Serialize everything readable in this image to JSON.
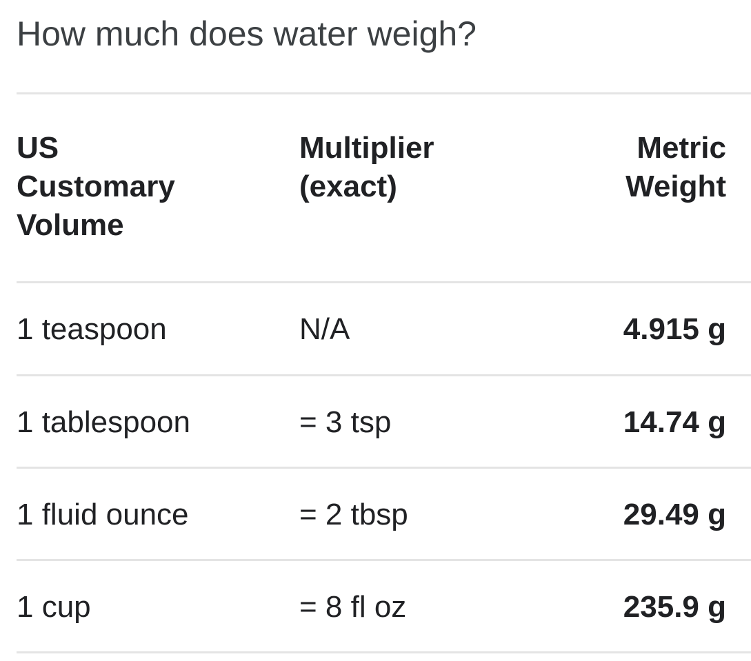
{
  "title": "How much does water weigh?",
  "table": {
    "headers": {
      "volume": "US\nCustomary\nVolume",
      "multiplier": "Multiplier\n(exact)",
      "weight": "Metric\nWeight"
    },
    "rows": [
      {
        "volume": "1 teaspoon",
        "multiplier": "N/A",
        "weight": "4.915 g"
      },
      {
        "volume": "1 tablespoon",
        "multiplier": "= 3 tsp",
        "weight": "14.74 g"
      },
      {
        "volume": "1 fluid ounce",
        "multiplier": "= 2 tbsp",
        "weight": "29.49 g"
      },
      {
        "volume": "1 cup",
        "multiplier": "= 8 fl oz",
        "weight": "235.9 g"
      }
    ]
  }
}
